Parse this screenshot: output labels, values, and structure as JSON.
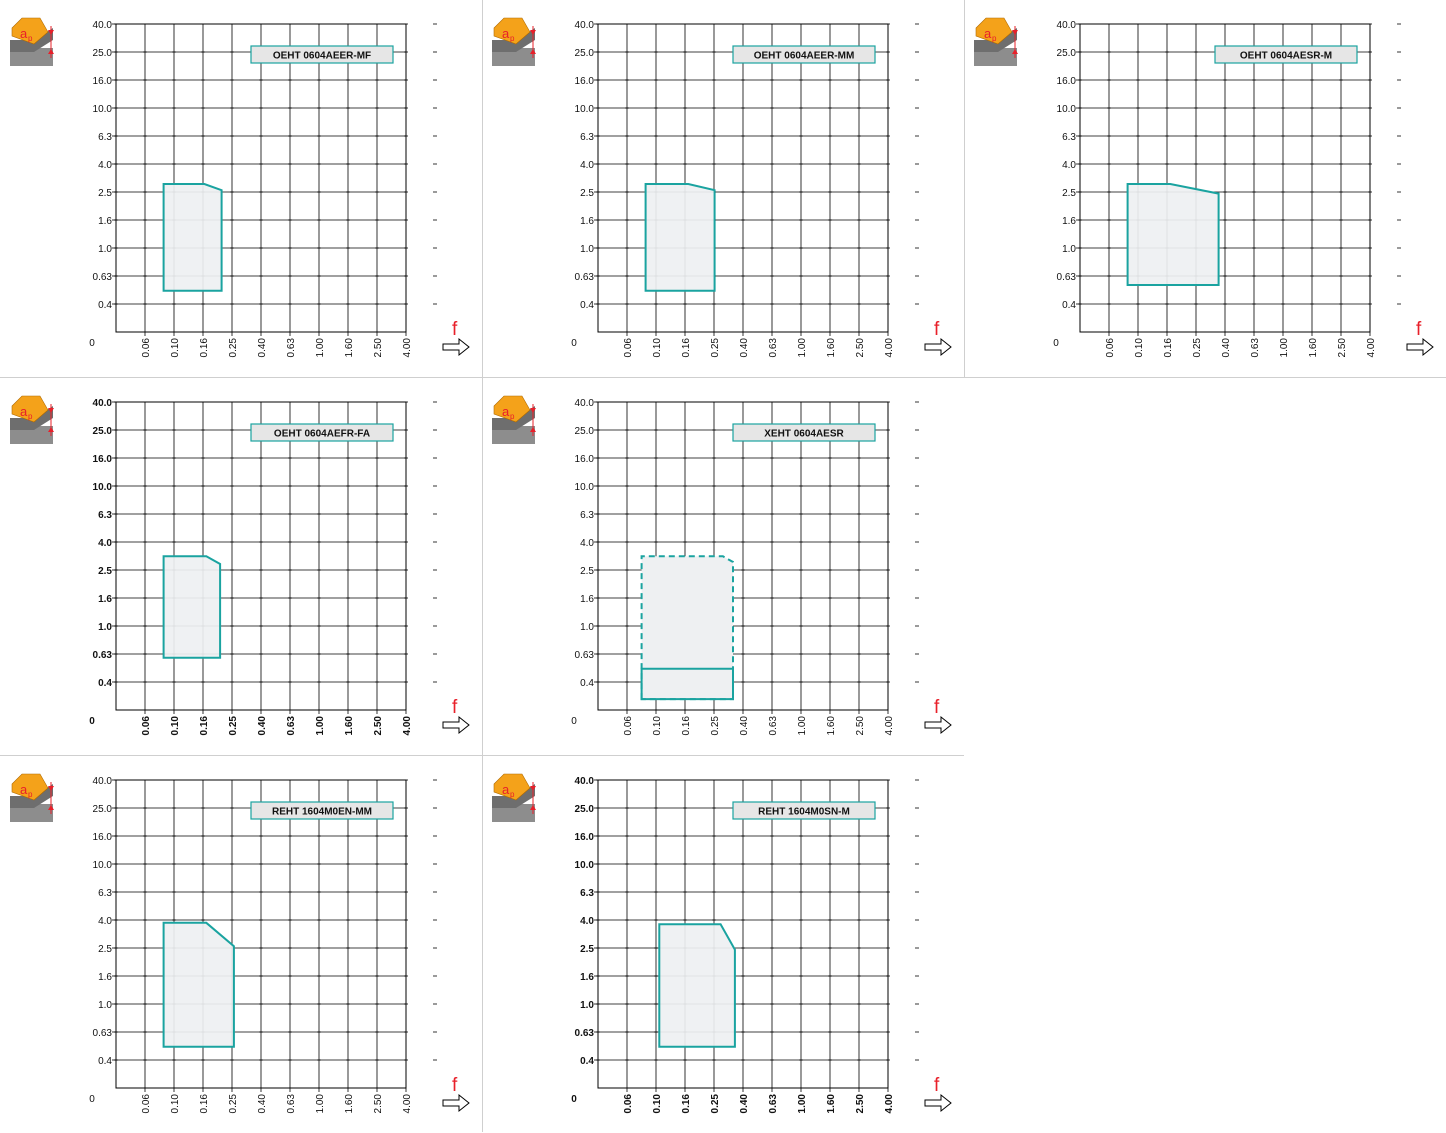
{
  "colors": {
    "accent": "#1aa3a0",
    "fill": "#eef0f2",
    "icon_orange": "#f4a21a",
    "icon_red": "#e8202a",
    "workpiece": "#8d8d8d"
  },
  "icon": {
    "name": "depth-of-cut-icon",
    "label_main": "a",
    "label_sub": "p"
  },
  "axis": {
    "y_ticks": [
      "0.4",
      "0.63",
      "1.0",
      "1.6",
      "2.5",
      "4.0",
      "6.3",
      "10.0",
      "16.0",
      "25.0",
      "40.0"
    ],
    "x_ticks": [
      "0.06",
      "0.10",
      "0.16",
      "0.25",
      "0.40",
      "0.63",
      "1.00",
      "1.60",
      "2.50",
      "4.00"
    ],
    "origin_label": "0",
    "x_symbol": "f"
  },
  "chart_data": [
    {
      "type": "area",
      "title": "OEHT 0604AEER-MF",
      "bold_labels": false,
      "regions": [
        {
          "style": "solid",
          "points": [
            [
              0.08,
              0.5
            ],
            [
              0.08,
              3.0
            ],
            [
              0.155,
              3.0
            ],
            [
              0.205,
              2.7
            ],
            [
              0.205,
              0.5
            ]
          ]
        }
      ]
    },
    {
      "type": "area",
      "title": "OEHT 0604AEER-MM",
      "bold_labels": false,
      "regions": [
        {
          "style": "solid",
          "points": [
            [
              0.08,
              0.5
            ],
            [
              0.08,
              3.0
            ],
            [
              0.16,
              3.0
            ],
            [
              0.245,
              2.7
            ],
            [
              0.245,
              0.5
            ]
          ]
        }
      ]
    },
    {
      "type": "area",
      "title": "OEHT 0604AESR-M",
      "bold_labels": false,
      "regions": [
        {
          "style": "solid",
          "points": [
            [
              0.08,
              0.55
            ],
            [
              0.08,
              3.0
            ],
            [
              0.16,
              3.0
            ],
            [
              0.35,
              2.55
            ],
            [
              0.35,
              0.55
            ]
          ]
        }
      ]
    },
    {
      "type": "area",
      "title": "OEHT 0604AEFR-FA",
      "bold_labels": true,
      "regions": [
        {
          "style": "solid",
          "points": [
            [
              0.08,
              0.6
            ],
            [
              0.08,
              3.3
            ],
            [
              0.16,
              3.3
            ],
            [
              0.2,
              2.9
            ],
            [
              0.2,
              0.6
            ]
          ]
        }
      ]
    },
    {
      "type": "area",
      "title": "XEHT 0604AESR",
      "bold_labels": false,
      "regions": [
        {
          "style": "dashed",
          "points": [
            [
              0.075,
              0.3
            ],
            [
              0.075,
              3.3
            ],
            [
              0.28,
              3.3
            ],
            [
              0.33,
              3.0
            ],
            [
              0.33,
              0.3
            ]
          ]
        },
        {
          "style": "solid",
          "points": [
            [
              0.075,
              0.3
            ],
            [
              0.075,
              0.5
            ],
            [
              0.33,
              0.5
            ],
            [
              0.33,
              0.3
            ]
          ]
        }
      ]
    },
    {
      "type": "area",
      "title": "",
      "regions": []
    },
    {
      "type": "area",
      "title": "REHT 1604M0EN-MM",
      "bold_labels": false,
      "regions": [
        {
          "style": "solid",
          "points": [
            [
              0.08,
              0.5
            ],
            [
              0.08,
              4.0
            ],
            [
              0.16,
              4.0
            ],
            [
              0.25,
              2.7
            ],
            [
              0.25,
              0.5
            ]
          ]
        }
      ]
    },
    {
      "type": "area",
      "title": "REHT 1604M0SN-M",
      "bold_labels": true,
      "regions": [
        {
          "style": "solid",
          "points": [
            [
              0.1,
              0.5
            ],
            [
              0.1,
              3.9
            ],
            [
              0.27,
              3.9
            ],
            [
              0.34,
              2.55
            ],
            [
              0.34,
              0.5
            ]
          ]
        }
      ]
    }
  ]
}
